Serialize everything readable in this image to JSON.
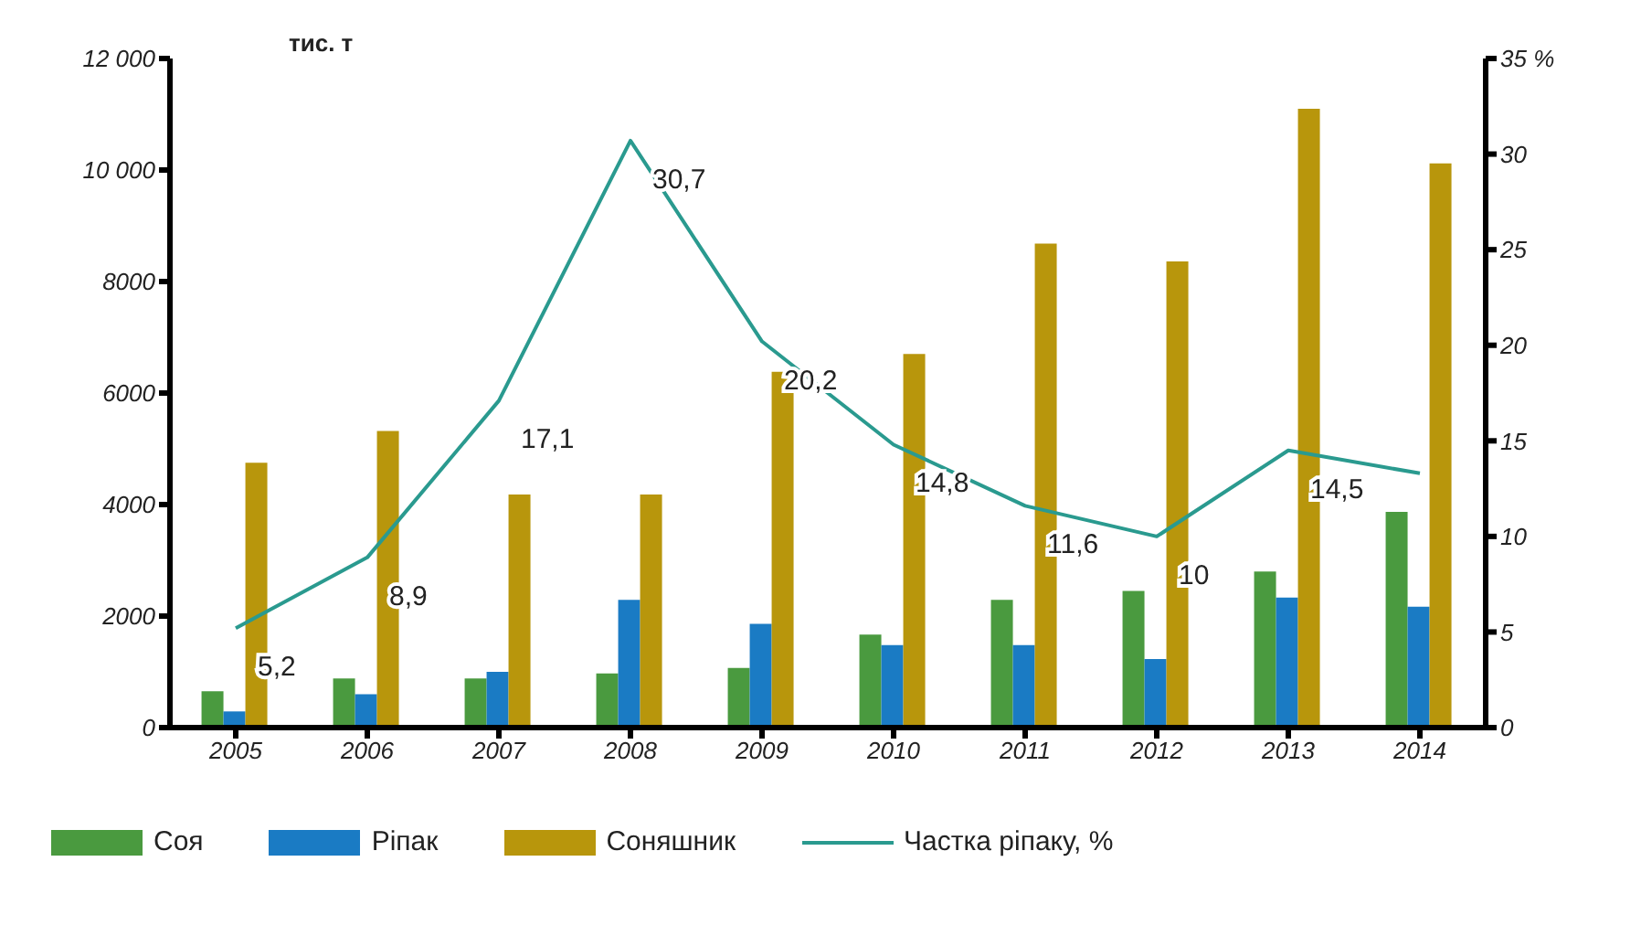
{
  "chart_data": {
    "type": "bar",
    "ylabel": "тис. т",
    "categories": [
      "2005",
      "2006",
      "2007",
      "2008",
      "2009",
      "2010",
      "2011",
      "2012",
      "2013",
      "2014"
    ],
    "series": [
      {
        "name": "Соя",
        "color": "#4a9a3f",
        "values": [
          650,
          880,
          880,
          970,
          1070,
          1670,
          2290,
          2450,
          2800,
          3870
        ]
      },
      {
        "name": "Ріпак",
        "color": "#1a7bc4",
        "values": [
          290,
          600,
          1000,
          2290,
          1860,
          1480,
          1480,
          1230,
          2330,
          2170
        ]
      },
      {
        "name": "Соняшник",
        "color": "#b8960c",
        "values": [
          4750,
          5320,
          4180,
          4180,
          6380,
          6700,
          8680,
          8360,
          11100,
          10120
        ]
      },
      {
        "name": "Частка ріпаку, %",
        "type": "line",
        "axis": "y2",
        "color": "#2a9a8f",
        "values": [
          5.2,
          8.9,
          17.1,
          30.7,
          20.2,
          14.8,
          11.6,
          10,
          14.5,
          13.3
        ],
        "value_labels": [
          "5,2",
          "8,9",
          "17,1",
          "30,7",
          "20,2",
          "14,8",
          "11,6",
          "10",
          "14,5",
          null
        ]
      }
    ],
    "ylim": [
      0,
      12000
    ],
    "yticks": [
      0,
      2000,
      4000,
      6000,
      8000,
      {
        "value": 10000,
        "label": "10 000"
      },
      {
        "value": 12000,
        "label": "12 000"
      }
    ],
    "y2lim": [
      0,
      35
    ],
    "y2ticks": [
      0,
      5,
      10,
      15,
      20,
      25,
      30,
      {
        "value": 35,
        "label": "35 %"
      }
    ],
    "legend": "bottom",
    "marker": "none"
  }
}
